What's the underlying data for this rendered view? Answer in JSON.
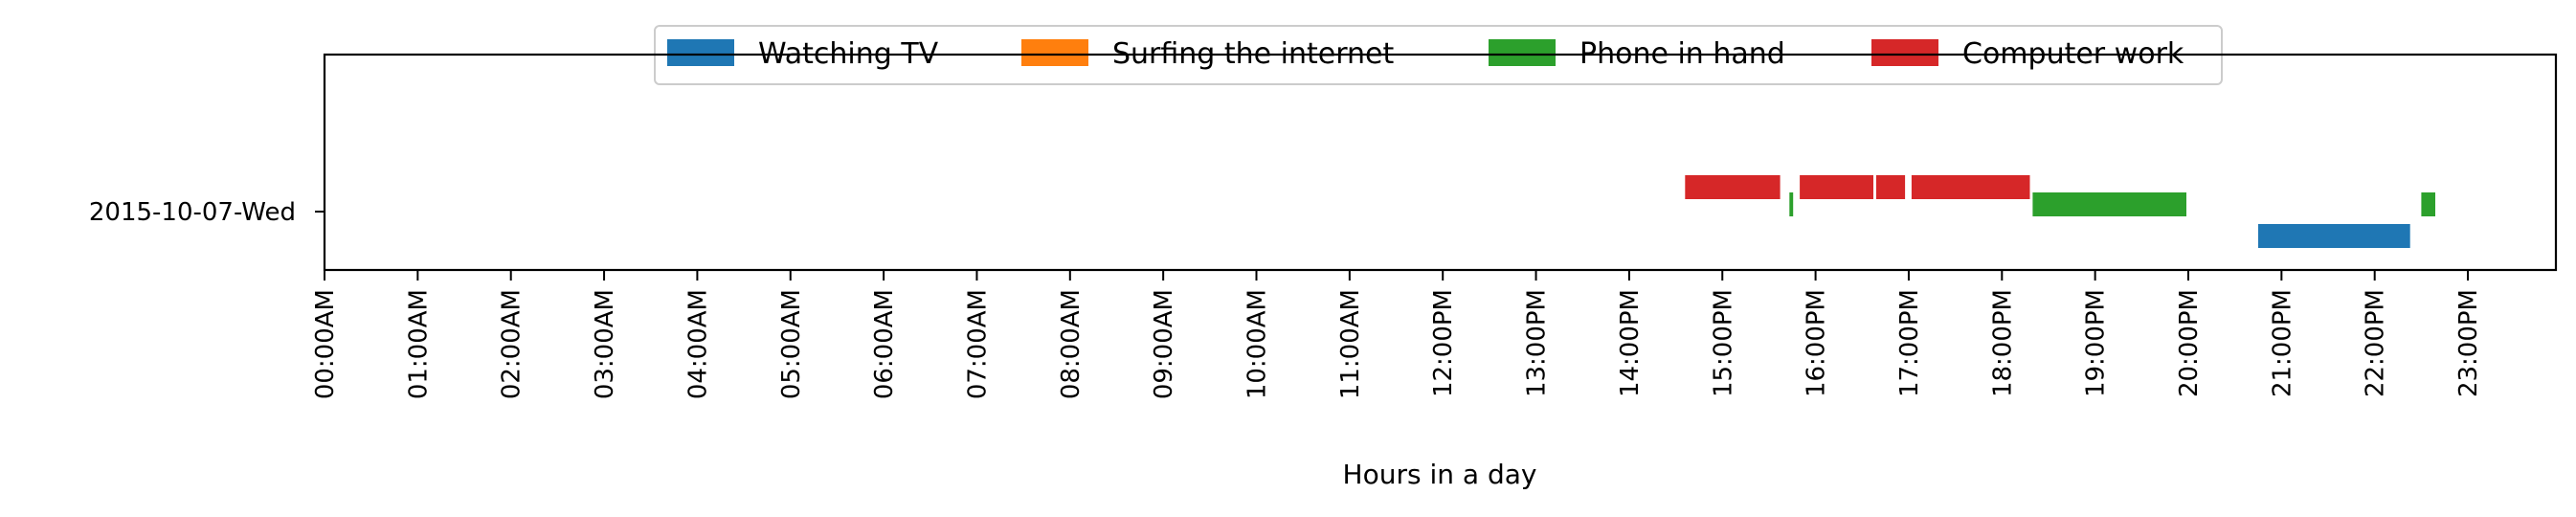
{
  "chart_data": {
    "type": "bar",
    "orientation": "horizontal-timeline",
    "title": "",
    "xlabel": "Hours in a day",
    "ylabel": "",
    "xlim": [
      0,
      24
    ],
    "grid": false,
    "legend_placement": "upper center",
    "categories": [
      "2015-10-07-Wed"
    ],
    "x_tick_labels": [
      "00:00AM",
      "01:00AM",
      "02:00AM",
      "03:00AM",
      "04:00AM",
      "05:00AM",
      "06:00AM",
      "07:00AM",
      "08:00AM",
      "09:00AM",
      "10:00AM",
      "11:00AM",
      "12:00PM",
      "13:00PM",
      "14:00PM",
      "15:00PM",
      "16:00PM",
      "17:00PM",
      "18:00PM",
      "19:00PM",
      "20:00PM",
      "21:00PM",
      "22:00PM",
      "23:00PM"
    ],
    "series": [
      {
        "name": "Watching TV",
        "color": "#1f77b4",
        "row": 0,
        "intervals": [
          [
            20.75,
            22.38
          ]
        ]
      },
      {
        "name": "Surfing the internet",
        "color": "#ff7f0e",
        "row": 1,
        "intervals": []
      },
      {
        "name": "Phone in hand",
        "color": "#2ca02c",
        "row": 2,
        "intervals": [
          [
            15.72,
            15.76
          ],
          [
            18.33,
            19.98
          ],
          [
            22.5,
            22.65
          ]
        ]
      },
      {
        "name": "Computer work",
        "color": "#d62728",
        "row": 3,
        "intervals": [
          [
            14.6,
            15.62
          ],
          [
            15.83,
            16.62
          ],
          [
            16.65,
            16.96
          ],
          [
            17.03,
            18.3
          ]
        ]
      }
    ]
  }
}
